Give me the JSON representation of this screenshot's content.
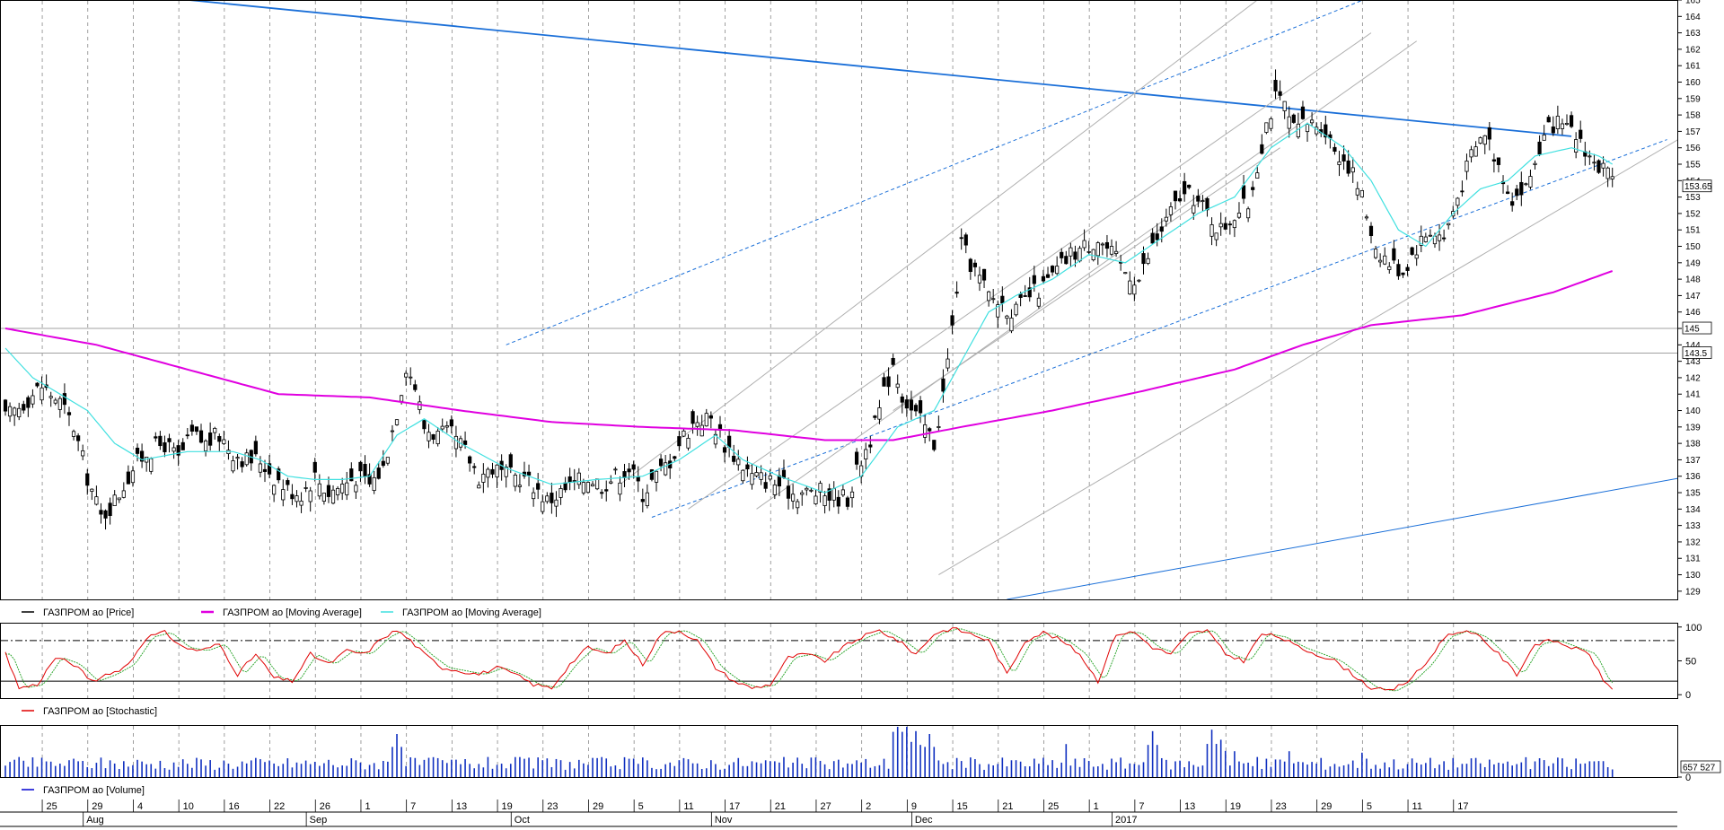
{
  "chart_data": [
    {
      "type": "candlestick",
      "panel": "price",
      "ylim": [
        128.5,
        165
      ],
      "y_ticks": [
        129,
        130,
        131,
        132,
        133,
        134,
        135,
        136,
        137,
        138,
        139,
        140,
        141,
        142,
        143,
        144,
        145,
        146,
        147,
        148,
        149,
        150,
        151,
        152,
        153,
        154,
        155,
        156,
        157,
        158,
        159,
        160,
        161,
        162,
        163,
        164,
        165
      ],
      "price_markers": [
        "153.65",
        "145",
        "143.5"
      ],
      "price_marker_values": [
        153.65,
        145,
        143.5
      ],
      "horizontal_lines": [
        145,
        143.5
      ],
      "legend": [
        {
          "label": "ГАЗПРОМ ао [Price]",
          "color": "#000000"
        },
        {
          "label": "ГАЗПРОМ ао [Moving Average]",
          "color": "#e000e0"
        },
        {
          "label": "ГАЗПРОМ ао [Moving Average]",
          "color": "#40e0e0"
        }
      ],
      "close_anchors": [
        [
          0,
          139.5
        ],
        [
          4,
          140.5
        ],
        [
          8,
          141.5
        ],
        [
          12,
          140.5
        ],
        [
          15,
          139
        ],
        [
          18,
          136
        ],
        [
          21,
          133.5
        ],
        [
          24,
          134.5
        ],
        [
          28,
          136.5
        ],
        [
          31,
          137.5
        ],
        [
          35,
          138
        ],
        [
          38,
          137
        ],
        [
          41,
          138.5
        ],
        [
          44,
          138
        ],
        [
          47,
          138.5
        ],
        [
          50,
          137.5
        ],
        [
          53,
          137
        ],
        [
          56,
          137
        ],
        [
          59,
          136
        ],
        [
          62,
          135.2
        ],
        [
          65,
          135
        ],
        [
          68,
          136
        ],
        [
          71,
          135
        ],
        [
          74,
          135.5
        ],
        [
          77,
          136
        ],
        [
          80,
          135.5
        ],
        [
          83,
          136.5
        ],
        [
          86,
          140
        ],
        [
          88,
          142.8
        ],
        [
          90,
          141.5
        ],
        [
          92,
          139
        ],
        [
          95,
          138.5
        ],
        [
          98,
          138.5
        ],
        [
          101,
          137.5
        ],
        [
          104,
          136
        ],
        [
          107,
          136.5
        ],
        [
          110,
          136
        ],
        [
          113,
          136
        ],
        [
          116,
          135.5
        ],
        [
          119,
          134.5
        ],
        [
          122,
          135
        ],
        [
          125,
          135.5
        ],
        [
          128,
          136
        ],
        [
          131,
          135.5
        ],
        [
          134,
          136
        ],
        [
          137,
          136.5
        ],
        [
          140,
          135
        ],
        [
          143,
          136
        ],
        [
          146,
          137
        ],
        [
          149,
          138.5
        ],
        [
          152,
          139.5
        ],
        [
          155,
          139.5
        ],
        [
          158,
          138
        ],
        [
          161,
          137
        ],
        [
          164,
          136
        ],
        [
          167,
          135.8
        ],
        [
          170,
          135.5
        ],
        [
          173,
          135
        ],
        [
          176,
          135
        ],
        [
          179,
          135
        ],
        [
          182,
          134.8
        ],
        [
          185,
          134.7
        ],
        [
          188,
          137
        ],
        [
          191,
          139
        ],
        [
          193,
          141
        ],
        [
          195,
          143
        ],
        [
          197,
          141
        ],
        [
          199,
          140
        ],
        [
          202,
          139
        ],
        [
          204,
          138
        ],
        [
          206,
          141
        ],
        [
          208,
          145
        ],
        [
          210,
          150
        ],
        [
          212,
          149
        ],
        [
          214,
          148
        ],
        [
          216,
          147
        ],
        [
          219,
          146.5
        ],
        [
          222,
          146
        ],
        [
          225,
          147
        ],
        [
          228,
          147.5
        ],
        [
          231,
          148.5
        ],
        [
          234,
          149.5
        ],
        [
          237,
          150
        ],
        [
          240,
          150.5
        ],
        [
          243,
          149.5
        ],
        [
          246,
          148.5
        ],
        [
          249,
          148
        ],
        [
          252,
          150
        ],
        [
          255,
          151.5
        ],
        [
          258,
          153
        ],
        [
          261,
          153
        ],
        [
          264,
          152
        ],
        [
          267,
          151
        ],
        [
          270,
          152
        ],
        [
          273,
          152.5
        ],
        [
          275,
          155
        ],
        [
          277,
          157.5
        ],
        [
          279,
          159
        ],
        [
          281,
          158.5
        ],
        [
          283,
          157
        ],
        [
          286,
          157.5
        ],
        [
          289,
          157.5
        ],
        [
          292,
          156
        ],
        [
          295,
          155
        ],
        [
          298,
          153
        ],
        [
          301,
          150
        ],
        [
          304,
          149
        ],
        [
          307,
          148.5
        ],
        [
          310,
          150
        ],
        [
          313,
          151
        ],
        [
          316,
          150.5
        ],
        [
          319,
          153
        ],
        [
          322,
          155.5
        ],
        [
          325,
          157
        ],
        [
          328,
          155
        ],
        [
          331,
          153
        ],
        [
          334,
          153.5
        ],
        [
          337,
          156
        ],
        [
          340,
          157.5
        ],
        [
          343,
          157
        ],
        [
          346,
          156.5
        ],
        [
          349,
          155
        ],
        [
          352,
          154.5
        ],
        [
          353,
          153.65
        ]
      ],
      "ma_long_anchors": [
        [
          0,
          145
        ],
        [
          20,
          144
        ],
        [
          40,
          142.5
        ],
        [
          60,
          141
        ],
        [
          80,
          140.8
        ],
        [
          100,
          140
        ],
        [
          120,
          139.3
        ],
        [
          140,
          139
        ],
        [
          160,
          138.8
        ],
        [
          180,
          138.2
        ],
        [
          195,
          138.2
        ],
        [
          210,
          139
        ],
        [
          230,
          140
        ],
        [
          250,
          141.2
        ],
        [
          270,
          142.5
        ],
        [
          285,
          144
        ],
        [
          300,
          145.2
        ],
        [
          320,
          145.8
        ],
        [
          340,
          147.2
        ],
        [
          353,
          148.5
        ]
      ],
      "ma_short_anchors": [
        [
          0,
          143.8
        ],
        [
          6,
          142
        ],
        [
          12,
          141
        ],
        [
          18,
          140
        ],
        [
          24,
          138
        ],
        [
          30,
          137
        ],
        [
          40,
          137.5
        ],
        [
          50,
          137.5
        ],
        [
          56,
          137
        ],
        [
          62,
          136
        ],
        [
          68,
          135.8
        ],
        [
          74,
          135.8
        ],
        [
          80,
          136
        ],
        [
          86,
          138.5
        ],
        [
          92,
          139.5
        ],
        [
          100,
          138
        ],
        [
          110,
          136.5
        ],
        [
          120,
          135.5
        ],
        [
          130,
          135.8
        ],
        [
          140,
          136
        ],
        [
          148,
          137
        ],
        [
          156,
          138.5
        ],
        [
          162,
          137
        ],
        [
          170,
          136
        ],
        [
          180,
          135
        ],
        [
          188,
          136
        ],
        [
          196,
          139
        ],
        [
          204,
          140
        ],
        [
          210,
          143
        ],
        [
          216,
          146
        ],
        [
          222,
          147
        ],
        [
          230,
          148
        ],
        [
          238,
          149.5
        ],
        [
          246,
          149
        ],
        [
          254,
          150.5
        ],
        [
          262,
          152
        ],
        [
          270,
          153
        ],
        [
          278,
          156
        ],
        [
          286,
          157.5
        ],
        [
          294,
          156
        ],
        [
          300,
          154
        ],
        [
          306,
          151
        ],
        [
          312,
          150
        ],
        [
          318,
          152
        ],
        [
          324,
          153.5
        ],
        [
          330,
          154
        ],
        [
          336,
          155.5
        ],
        [
          344,
          156
        ],
        [
          350,
          155.5
        ],
        [
          353,
          155
        ]
      ]
    },
    {
      "type": "line",
      "panel": "stochastic",
      "ylim": [
        -5,
        105
      ],
      "y_ticks": [
        0,
        50,
        100
      ],
      "reference_levels": [
        80,
        20
      ],
      "legend": [
        {
          "label": "ГАЗПРОМ ао [Stochastic]",
          "color": "#e00000"
        }
      ],
      "k_anchors": [
        [
          0,
          60
        ],
        [
          3,
          10
        ],
        [
          7,
          15
        ],
        [
          11,
          55
        ],
        [
          15,
          45
        ],
        [
          19,
          20
        ],
        [
          23,
          30
        ],
        [
          27,
          45
        ],
        [
          31,
          85
        ],
        [
          35,
          92
        ],
        [
          39,
          70
        ],
        [
          43,
          65
        ],
        [
          47,
          75
        ],
        [
          51,
          30
        ],
        [
          55,
          60
        ],
        [
          59,
          25
        ],
        [
          63,
          20
        ],
        [
          67,
          60
        ],
        [
          71,
          45
        ],
        [
          75,
          65
        ],
        [
          79,
          60
        ],
        [
          83,
          85
        ],
        [
          86,
          95
        ],
        [
          89,
          80
        ],
        [
          92,
          60
        ],
        [
          96,
          40
        ],
        [
          100,
          35
        ],
        [
          104,
          30
        ],
        [
          108,
          40
        ],
        [
          112,
          30
        ],
        [
          116,
          15
        ],
        [
          120,
          10
        ],
        [
          124,
          45
        ],
        [
          128,
          70
        ],
        [
          132,
          60
        ],
        [
          136,
          80
        ],
        [
          140,
          45
        ],
        [
          144,
          90
        ],
        [
          148,
          95
        ],
        [
          152,
          80
        ],
        [
          156,
          40
        ],
        [
          160,
          20
        ],
        [
          164,
          10
        ],
        [
          168,
          15
        ],
        [
          172,
          55
        ],
        [
          176,
          60
        ],
        [
          180,
          50
        ],
        [
          184,
          70
        ],
        [
          188,
          85
        ],
        [
          192,
          95
        ],
        [
          196,
          80
        ],
        [
          200,
          60
        ],
        [
          204,
          90
        ],
        [
          208,
          98
        ],
        [
          212,
          90
        ],
        [
          216,
          80
        ],
        [
          220,
          30
        ],
        [
          224,
          80
        ],
        [
          228,
          92
        ],
        [
          232,
          80
        ],
        [
          236,
          60
        ],
        [
          240,
          20
        ],
        [
          244,
          90
        ],
        [
          248,
          92
        ],
        [
          252,
          70
        ],
        [
          256,
          60
        ],
        [
          260,
          90
        ],
        [
          264,
          95
        ],
        [
          268,
          60
        ],
        [
          272,
          50
        ],
        [
          276,
          90
        ],
        [
          280,
          85
        ],
        [
          284,
          70
        ],
        [
          288,
          60
        ],
        [
          292,
          50
        ],
        [
          296,
          30
        ],
        [
          300,
          10
        ],
        [
          304,
          5
        ],
        [
          308,
          20
        ],
        [
          312,
          45
        ],
        [
          316,
          85
        ],
        [
          320,
          95
        ],
        [
          324,
          85
        ],
        [
          328,
          60
        ],
        [
          332,
          30
        ],
        [
          336,
          75
        ],
        [
          340,
          80
        ],
        [
          344,
          70
        ],
        [
          348,
          60
        ],
        [
          351,
          20
        ],
        [
          353,
          10
        ]
      ]
    },
    {
      "type": "bar",
      "panel": "volume",
      "last_value": "657 527",
      "legend": [
        {
          "label": "ГАЗПРОМ ао [Volume]",
          "color": "#0000d0"
        }
      ],
      "spikes": [
        [
          86,
          3.0
        ],
        [
          196,
          4.5
        ],
        [
          198,
          3.5
        ],
        [
          200,
          3.2
        ],
        [
          203,
          3.0
        ],
        [
          233,
          2.3
        ],
        [
          252,
          3.2
        ],
        [
          265,
          3.3
        ],
        [
          267,
          2.6
        ],
        [
          270,
          1.8
        ],
        [
          282,
          1.8
        ],
        [
          298,
          1.7
        ]
      ]
    }
  ],
  "x_axis": {
    "day_labels": [
      "25",
      "29",
      "4",
      "10",
      "16",
      "22",
      "26",
      "1",
      "7",
      "13",
      "19",
      "23",
      "29",
      "5",
      "11",
      "17",
      "21",
      "27",
      "2",
      "9",
      "15",
      "21",
      "25",
      "1",
      "7",
      "13",
      "19",
      "23",
      "29",
      "5",
      "11",
      "17"
    ],
    "month_labels": [
      "Aug",
      "Sep",
      "Oct",
      "Nov",
      "Dec",
      "2017"
    ]
  }
}
